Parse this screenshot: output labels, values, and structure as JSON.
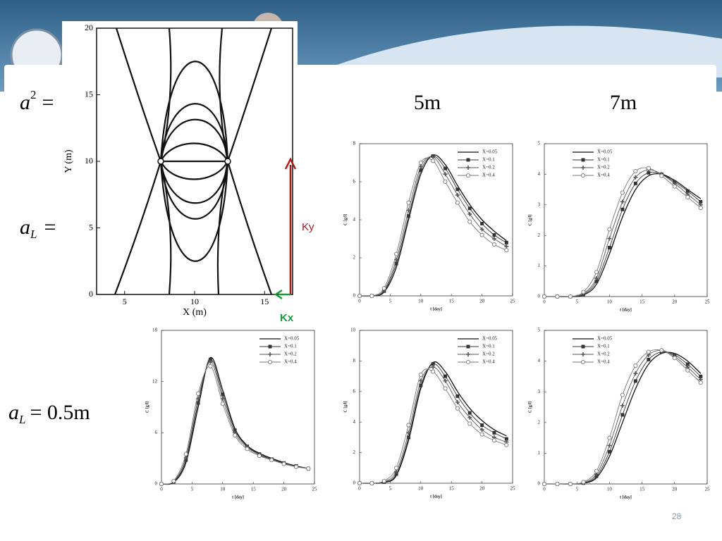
{
  "slide": {
    "page_number": "28",
    "column_labels": [
      "5m",
      "7m"
    ],
    "equation_labels": [
      {
        "symbol": "a",
        "superscript": "2",
        "suffix": "="
      },
      {
        "symbol": "a",
        "subscript": "L",
        "suffix": "="
      },
      {
        "symbol": "a",
        "subscript": "L",
        "suffix": "= 0.5m"
      }
    ]
  },
  "streamline_plot": {
    "xlabel": "X (m)",
    "ylabel": "Y (m)",
    "xlim": [
      3,
      17
    ],
    "ylim": [
      0,
      20
    ],
    "xticks": [
      5,
      10,
      15
    ],
    "yticks": [
      0,
      5,
      10,
      15,
      20
    ],
    "arrow_labels": [
      "Ky",
      "Kx"
    ]
  },
  "chart_data": [
    {
      "type": "line",
      "xlabel": "t [day]",
      "ylabel": "C [g/l]",
      "xlim": [
        0,
        25
      ],
      "ylim": [
        0,
        8
      ],
      "xticks": [
        0,
        5,
        10,
        15,
        20,
        25
      ],
      "yticks": [
        0,
        2,
        4,
        6,
        8
      ],
      "legend_corner": "upper right",
      "x": [
        0,
        2,
        4,
        6,
        8,
        10,
        12,
        14,
        16,
        18,
        20,
        22,
        24
      ],
      "series": [
        {
          "name": "X=0.05",
          "color": "#111111",
          "marker": "none",
          "values": [
            0,
            0,
            0.2,
            1.5,
            4.0,
            6.4,
            7.4,
            6.9,
            5.8,
            4.8,
            4.0,
            3.4,
            2.9
          ]
        },
        {
          "name": "X=0.1",
          "color": "#333333",
          "marker": "square",
          "values": [
            0,
            0,
            0.25,
            1.7,
            4.2,
            6.6,
            7.35,
            6.7,
            5.6,
            4.6,
            3.8,
            3.2,
            2.8
          ]
        },
        {
          "name": "X=0.2",
          "color": "#555555",
          "marker": "plus",
          "values": [
            0,
            0,
            0.3,
            1.9,
            4.5,
            6.8,
            7.3,
            6.4,
            5.3,
            4.3,
            3.5,
            3.0,
            2.6
          ]
        },
        {
          "name": "X=0.4",
          "color": "#777777",
          "marker": "circle",
          "values": [
            0,
            0,
            0.4,
            2.2,
            4.9,
            7.0,
            7.1,
            6.0,
            4.9,
            3.9,
            3.2,
            2.7,
            2.4
          ]
        }
      ]
    },
    {
      "type": "line",
      "xlabel": "t [day]",
      "ylabel": "C [g/l]",
      "xlim": [
        0,
        25
      ],
      "ylim": [
        0,
        5
      ],
      "xticks": [
        0,
        5,
        10,
        15,
        20,
        25
      ],
      "yticks": [
        0,
        1,
        2,
        3,
        4,
        5
      ],
      "legend_corner": "upper left",
      "x": [
        0,
        2,
        4,
        6,
        8,
        10,
        12,
        14,
        16,
        18,
        20,
        22,
        24
      ],
      "series": [
        {
          "name": "X=0.05",
          "color": "#111111",
          "marker": "none",
          "values": [
            0,
            0,
            0,
            0.05,
            0.4,
            1.4,
            2.6,
            3.5,
            3.95,
            4.0,
            3.8,
            3.5,
            3.2
          ]
        },
        {
          "name": "X=0.1",
          "color": "#333333",
          "marker": "square",
          "values": [
            0,
            0,
            0,
            0.07,
            0.5,
            1.6,
            2.85,
            3.7,
            4.05,
            4.0,
            3.75,
            3.45,
            3.1
          ]
        },
        {
          "name": "X=0.2",
          "color": "#555555",
          "marker": "plus",
          "values": [
            0,
            0,
            0,
            0.1,
            0.6,
            1.9,
            3.1,
            3.9,
            4.15,
            4.0,
            3.7,
            3.35,
            3.0
          ]
        },
        {
          "name": "X=0.4",
          "color": "#777777",
          "marker": "circle",
          "values": [
            0,
            0,
            0,
            0.15,
            0.8,
            2.2,
            3.4,
            4.1,
            4.2,
            3.95,
            3.6,
            3.25,
            2.9
          ]
        }
      ]
    },
    {
      "type": "line",
      "xlabel": "t [day]",
      "ylabel": "C [g/l]",
      "xlim": [
        0,
        25
      ],
      "ylim": [
        0,
        18
      ],
      "xticks": [
        0,
        5,
        10,
        15,
        20,
        25
      ],
      "yticks": [
        0,
        6,
        12,
        18
      ],
      "legend_corner": "upper right",
      "x": [
        0,
        2,
        4,
        6,
        8,
        10,
        12,
        14,
        16,
        18,
        20,
        22,
        24
      ],
      "series": [
        {
          "name": "X=0.05",
          "color": "#111111",
          "marker": "none",
          "values": [
            0,
            0.2,
            2.5,
            9,
            14.8,
            11,
            6.5,
            4.5,
            3.6,
            3.0,
            2.5,
            2.1,
            1.8
          ]
        },
        {
          "name": "X=0.1",
          "color": "#333333",
          "marker": "square",
          "values": [
            0,
            0.25,
            2.8,
            9.5,
            14.6,
            10.5,
            6.3,
            4.4,
            3.5,
            2.9,
            2.45,
            2.1,
            1.8
          ]
        },
        {
          "name": "X=0.2",
          "color": "#555555",
          "marker": "plus",
          "values": [
            0,
            0.3,
            3.1,
            10,
            14.3,
            10,
            6.0,
            4.3,
            3.4,
            2.85,
            2.4,
            2.05,
            1.8
          ]
        },
        {
          "name": "X=0.4",
          "color": "#777777",
          "marker": "circle",
          "values": [
            0,
            0.35,
            3.5,
            10.6,
            13.8,
            9.4,
            5.7,
            4.1,
            3.3,
            2.8,
            2.35,
            2.0,
            1.8
          ]
        }
      ]
    },
    {
      "type": "line",
      "xlabel": "t [day]",
      "ylabel": "C [g/l]",
      "xlim": [
        0,
        25
      ],
      "ylim": [
        0,
        10
      ],
      "xticks": [
        0,
        5,
        10,
        15,
        20,
        25
      ],
      "yticks": [
        0,
        2,
        4,
        6,
        8,
        10
      ],
      "legend_corner": "upper right",
      "x": [
        0,
        2,
        4,
        6,
        8,
        10,
        12,
        14,
        16,
        18,
        20,
        22,
        24
      ],
      "series": [
        {
          "name": "X=0.05",
          "color": "#111111",
          "marker": "none",
          "values": [
            0,
            0,
            0.05,
            0.5,
            2.8,
            6.2,
            7.9,
            7.3,
            6.0,
            4.9,
            4.1,
            3.5,
            3.1
          ]
        },
        {
          "name": "X=0.1",
          "color": "#333333",
          "marker": "square",
          "values": [
            0,
            0,
            0.07,
            0.6,
            3.0,
            6.4,
            7.8,
            7.0,
            5.7,
            4.6,
            3.8,
            3.3,
            2.9
          ]
        },
        {
          "name": "X=0.2",
          "color": "#555555",
          "marker": "plus",
          "values": [
            0,
            0,
            0.1,
            0.75,
            3.3,
            6.7,
            7.6,
            6.7,
            5.3,
            4.3,
            3.5,
            3.0,
            2.7
          ]
        },
        {
          "name": "X=0.4",
          "color": "#777777",
          "marker": "circle",
          "values": [
            0,
            0,
            0.15,
            1.0,
            3.8,
            7.1,
            7.3,
            6.2,
            4.9,
            3.9,
            3.2,
            2.8,
            2.5
          ]
        }
      ]
    },
    {
      "type": "line",
      "xlabel": "t [day]",
      "ylabel": "C [g/l]",
      "xlim": [
        0,
        25
      ],
      "ylim": [
        0,
        5
      ],
      "xticks": [
        0,
        5,
        10,
        15,
        20,
        25
      ],
      "yticks": [
        0,
        1,
        2,
        3,
        4,
        5
      ],
      "legend_corner": "upper left",
      "x": [
        0,
        2,
        4,
        6,
        8,
        10,
        12,
        14,
        16,
        18,
        20,
        22,
        24
      ],
      "series": [
        {
          "name": "X=0.05",
          "color": "#111111",
          "marker": "none",
          "values": [
            0,
            0,
            0,
            0.02,
            0.2,
            0.9,
            2.0,
            3.1,
            3.9,
            4.25,
            4.25,
            4.0,
            3.6
          ]
        },
        {
          "name": "X=0.1",
          "color": "#333333",
          "marker": "square",
          "values": [
            0,
            0,
            0,
            0.03,
            0.25,
            1.05,
            2.25,
            3.35,
            4.05,
            4.3,
            4.2,
            3.9,
            3.5
          ]
        },
        {
          "name": "X=0.2",
          "color": "#555555",
          "marker": "plus",
          "values": [
            0,
            0,
            0,
            0.04,
            0.32,
            1.25,
            2.55,
            3.6,
            4.2,
            4.35,
            4.15,
            3.8,
            3.4
          ]
        },
        {
          "name": "X=0.4",
          "color": "#777777",
          "marker": "circle",
          "values": [
            0,
            0,
            0,
            0.06,
            0.42,
            1.5,
            2.9,
            3.85,
            4.3,
            4.35,
            4.1,
            3.7,
            3.3
          ]
        }
      ]
    }
  ]
}
